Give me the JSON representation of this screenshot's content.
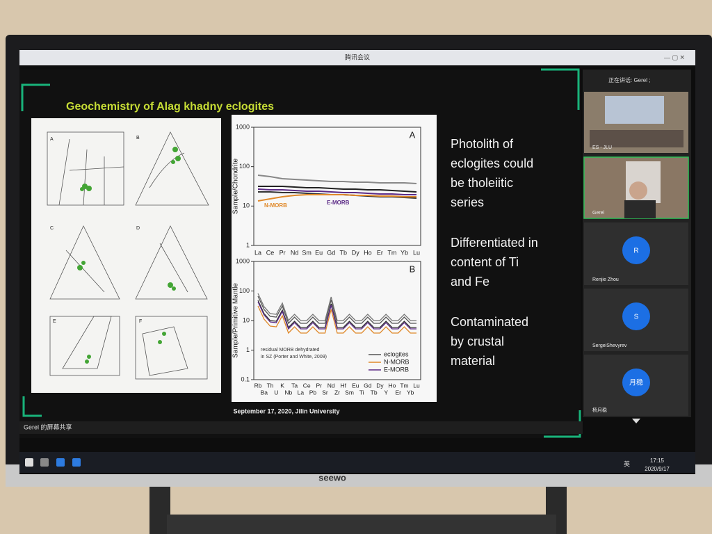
{
  "window": {
    "title": "腾讯会议"
  },
  "slide": {
    "title": "Geochemistry of Alag khadny eclogites",
    "points": [
      [
        "Photolith of",
        "eclogites could",
        "be tholeiitic",
        "series"
      ],
      [
        "Differentiated in",
        "content of Ti",
        "and Fe"
      ],
      [
        "Contaminated",
        "by  crustal",
        "material"
      ]
    ],
    "footer": "September 17, 2020, Jilin University",
    "left_figure": {
      "panels": [
        "A",
        "B",
        "C",
        "D",
        "E",
        "F"
      ]
    },
    "chart_a": {
      "label": "A",
      "ylabel": "Sample/Chondrite",
      "categories": [
        "La",
        "Ce",
        "Pr",
        "Nd",
        "Sm",
        "Eu",
        "Gd",
        "Tb",
        "Dy",
        "Ho",
        "Er",
        "Tm",
        "Yb",
        "Lu"
      ],
      "ylim": [
        1,
        1000
      ],
      "yticks": [
        1,
        10,
        100,
        1000
      ],
      "annotations": [
        {
          "text": "N-MORB",
          "color": "#e0892a"
        },
        {
          "text": "E-MORB",
          "color": "#5b2a86"
        }
      ]
    },
    "chart_b": {
      "label": "B",
      "ylabel": "Sample/Primitive Mantle",
      "categories_top": [
        "Rb",
        "Th",
        "K",
        "Ta",
        "Ce",
        "Pr",
        "Nd",
        "Hf",
        "Eu",
        "Gd",
        "Dy",
        "Ho",
        "Tm",
        "Lu"
      ],
      "categories_bottom": [
        "Ba",
        "U",
        "Nb",
        "La",
        "Pb",
        "Sr",
        "Zr",
        "Sm",
        "Ti",
        "Tb",
        "Y",
        "Er",
        "Yb"
      ],
      "ylim": [
        0.1,
        1000
      ],
      "yticks": [
        0.1,
        1,
        10,
        100,
        1000
      ],
      "note": [
        "residual MORB dehydrated",
        "in SZ (Porter and White, 2009)"
      ],
      "legend": [
        {
          "name": "eclogites",
          "color": "#555555"
        },
        {
          "name": "N-MORB",
          "color": "#e0892a"
        },
        {
          "name": "E-MORB",
          "color": "#5b2a86"
        }
      ]
    }
  },
  "sidebar": {
    "speaking": "正在讲话: Gerel ;",
    "participants": [
      {
        "name": "ES - JLU"
      },
      {
        "name": "Gerel"
      },
      {
        "name": "Renjie Zhou",
        "avatar": "R"
      },
      {
        "name": "SergeiShevyrev",
        "avatar": "S"
      },
      {
        "name": "杨月稳",
        "avatar": "月稳"
      }
    ]
  },
  "share_bar": "Gerel 的屏幕共享",
  "taskbar": {
    "ime": "英",
    "time": "17:15",
    "date": "2020/9/17"
  },
  "brand": "seewo"
}
